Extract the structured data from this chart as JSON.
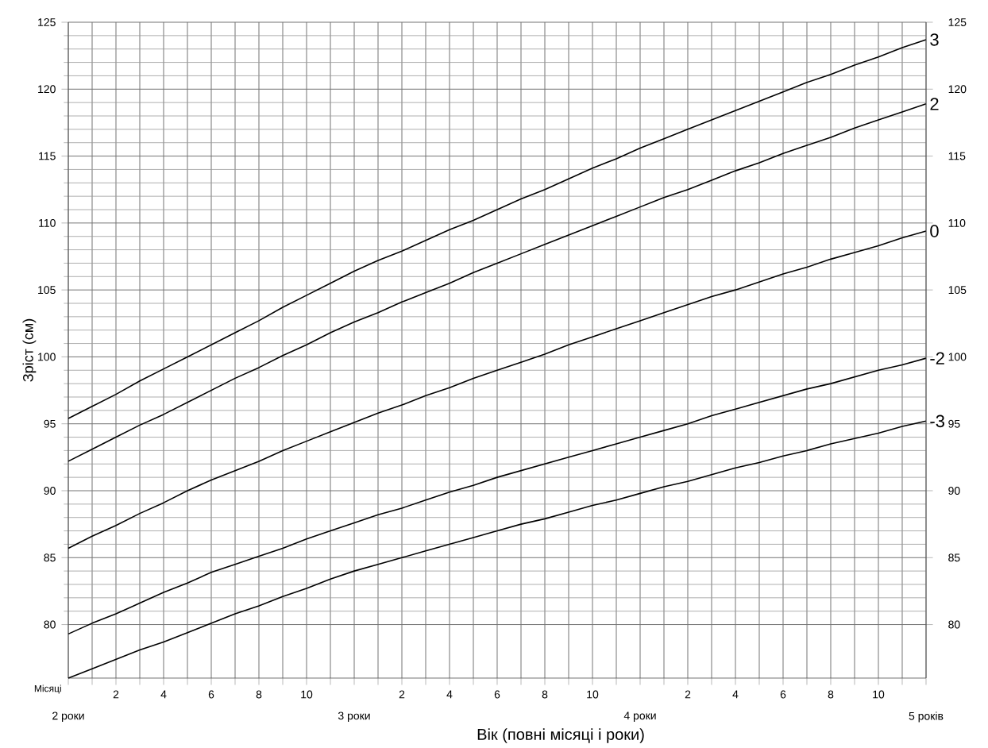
{
  "chart_data": {
    "type": "line",
    "xlabel": "Вік (повні місяці і роки)",
    "ylabel": "Зріст (см)",
    "annotations": [
      "Місяці",
      "2 роки",
      "3 роки",
      "4 роки",
      "5 років"
    ],
    "categories": [
      null,
      null,
      "2",
      null,
      "4",
      null,
      "6",
      null,
      "8",
      null,
      "10",
      null,
      null,
      null,
      "2",
      null,
      "4",
      null,
      "6",
      null,
      "8",
      null,
      "10",
      null,
      null,
      null,
      "2",
      null,
      "4",
      null,
      "6",
      null,
      "8",
      null,
      "10",
      null,
      null
    ],
    "series": [
      {
        "name": "3",
        "color": "#000000",
        "values": [
          95.4,
          96.3,
          97.2,
          98.2,
          99.1,
          100.0,
          100.9,
          101.8,
          102.7,
          103.7,
          104.6,
          105.5,
          106.4,
          107.2,
          107.9,
          108.7,
          109.5,
          110.2,
          111.0,
          111.8,
          112.5,
          113.3,
          114.1,
          114.8,
          115.6,
          116.3,
          117.0,
          117.7,
          118.4,
          119.1,
          119.8,
          120.5,
          121.1,
          121.8,
          122.4,
          123.1,
          123.7
        ]
      },
      {
        "name": "2",
        "color": "#000000",
        "values": [
          92.2,
          93.1,
          94.0,
          94.9,
          95.7,
          96.6,
          97.5,
          98.4,
          99.2,
          100.1,
          100.9,
          101.8,
          102.6,
          103.3,
          104.1,
          104.8,
          105.5,
          106.3,
          107.0,
          107.7,
          108.4,
          109.1,
          109.8,
          110.5,
          111.2,
          111.9,
          112.5,
          113.2,
          113.9,
          114.5,
          115.2,
          115.8,
          116.4,
          117.1,
          117.7,
          118.3,
          118.9
        ]
      },
      {
        "name": "0",
        "color": "#000000",
        "values": [
          85.7,
          86.6,
          87.4,
          88.3,
          89.1,
          90.0,
          90.8,
          91.5,
          92.2,
          93.0,
          93.7,
          94.4,
          95.1,
          95.8,
          96.4,
          97.1,
          97.7,
          98.4,
          99.0,
          99.6,
          100.2,
          100.9,
          101.5,
          102.1,
          102.7,
          103.3,
          103.9,
          104.5,
          105.0,
          105.6,
          106.2,
          106.7,
          107.3,
          107.8,
          108.3,
          108.9,
          109.4
        ]
      },
      {
        "name": "-2",
        "color": "#000000",
        "values": [
          79.3,
          80.1,
          80.8,
          81.6,
          82.4,
          83.1,
          83.9,
          84.5,
          85.1,
          85.7,
          86.4,
          87.0,
          87.6,
          88.2,
          88.7,
          89.3,
          89.9,
          90.4,
          91.0,
          91.5,
          92.0,
          92.5,
          93.0,
          93.5,
          94.0,
          94.5,
          95.0,
          95.6,
          96.1,
          96.6,
          97.1,
          97.6,
          98.0,
          98.5,
          99.0,
          99.4,
          99.9
        ]
      },
      {
        "name": "-3",
        "color": "#000000",
        "values": [
          76.0,
          76.7,
          77.4,
          78.1,
          78.7,
          79.4,
          80.1,
          80.8,
          81.4,
          82.1,
          82.7,
          83.4,
          84.0,
          84.5,
          85.0,
          85.5,
          86.0,
          86.5,
          87.0,
          87.5,
          87.9,
          88.4,
          88.9,
          89.3,
          89.8,
          90.3,
          90.7,
          91.2,
          91.7,
          92.1,
          92.6,
          93.0,
          93.5,
          93.9,
          94.3,
          94.8,
          95.2
        ]
      }
    ],
    "ylim": [
      76,
      125
    ],
    "yticks": [
      80,
      85,
      90,
      95,
      100,
      105,
      110,
      115,
      120,
      125
    ],
    "y2lim": [
      76,
      125
    ],
    "y2ticks": [
      80,
      85,
      90,
      95,
      100,
      105,
      110,
      115,
      120,
      125
    ],
    "grid": true
  }
}
